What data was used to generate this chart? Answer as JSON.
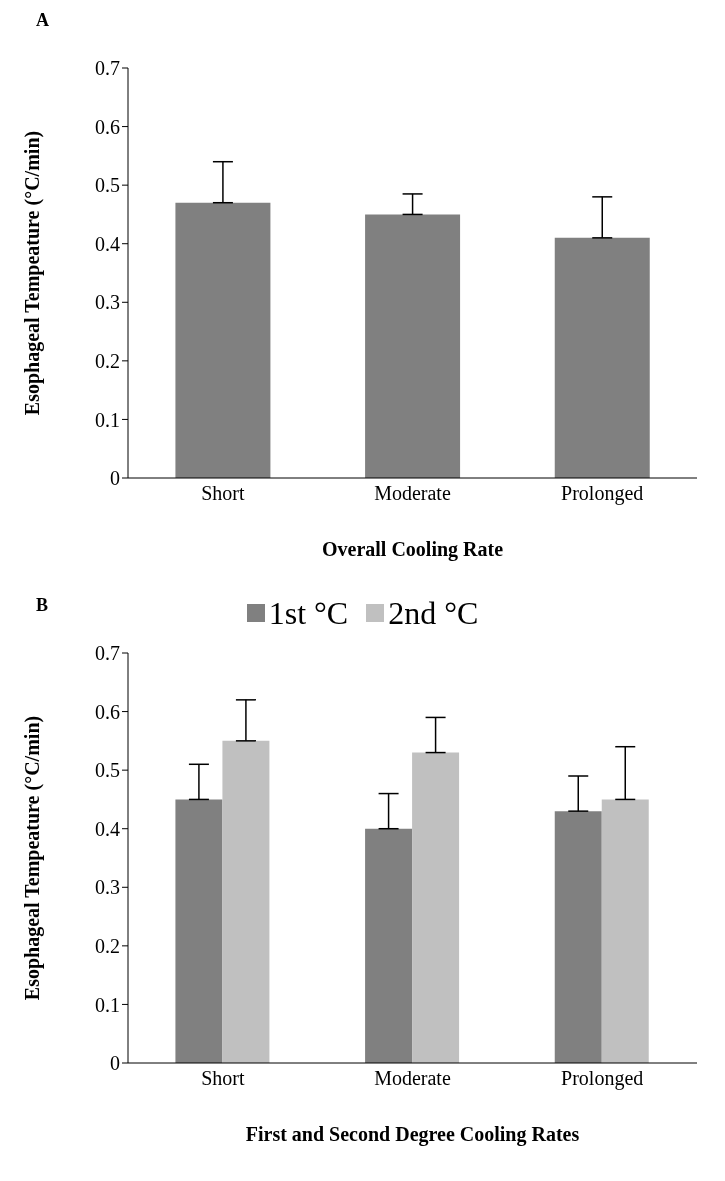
{
  "chart_data": [
    {
      "type": "bar",
      "annotations": [
        "A"
      ],
      "xlabel": "Overall Cooling Rate",
      "ylabel": "Esophageal Tempeature (°C/min)",
      "categories": [
        "Short",
        "Moderate",
        "Prolonged"
      ],
      "series": [
        {
          "color": "#808080",
          "values": [
            0.47,
            0.45,
            0.41
          ],
          "errors": [
            [
              0.47,
              0.54
            ],
            [
              0.45,
              0.485
            ],
            [
              0.41,
              0.48
            ]
          ]
        }
      ],
      "ylim": [
        0,
        0.7
      ],
      "yticks": [
        0,
        0.1,
        0.2,
        0.3,
        0.4,
        0.5,
        0.6,
        0.7
      ],
      "grid": false,
      "legend": false
    },
    {
      "type": "bar",
      "annotations": [
        "B"
      ],
      "xlabel": "First and Second Degree Cooling Rates",
      "ylabel": "Esophageal Tempeature (°C/min)",
      "categories": [
        "Short",
        "Moderate",
        "Prolonged"
      ],
      "series": [
        {
          "name": "1st °C",
          "color": "#808080",
          "values": [
            0.45,
            0.4,
            0.43
          ],
          "errors": [
            [
              0.45,
              0.51
            ],
            [
              0.4,
              0.46
            ],
            [
              0.43,
              0.49
            ]
          ]
        },
        {
          "name": "2nd °C",
          "color": "#c0c0c0",
          "values": [
            0.55,
            0.53,
            0.45
          ],
          "errors": [
            [
              0.55,
              0.62
            ],
            [
              0.53,
              0.59
            ],
            [
              0.45,
              0.54
            ]
          ]
        }
      ],
      "ylim": [
        0,
        0.7
      ],
      "yticks": [
        0,
        0.1,
        0.2,
        0.3,
        0.4,
        0.5,
        0.6,
        0.7
      ],
      "grid": false,
      "legend": "top"
    }
  ]
}
